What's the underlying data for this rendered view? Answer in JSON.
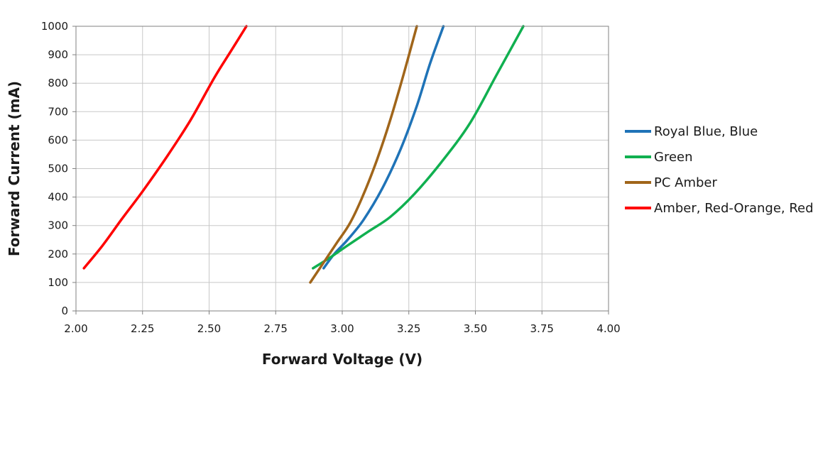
{
  "chart_data": {
    "type": "line",
    "title": "",
    "xlabel": "Forward Voltage (V)",
    "ylabel": "Forward Current (mA)",
    "xlim": [
      2.0,
      4.0
    ],
    "ylim": [
      0,
      1000
    ],
    "x_ticks": [
      "2.00",
      "2.25",
      "2.50",
      "2.75",
      "3.00",
      "3.25",
      "3.50",
      "3.75",
      "4.00"
    ],
    "y_ticks": [
      "0",
      "100",
      "200",
      "300",
      "400",
      "500",
      "600",
      "700",
      "800",
      "900",
      "1000"
    ],
    "grid": true,
    "legend_position": "right",
    "series": [
      {
        "name": "Royal Blue, Blue",
        "color": "#1f73b7",
        "x": [
          2.93,
          2.97,
          3.02,
          3.08,
          3.15,
          3.22,
          3.28,
          3.33,
          3.38
        ],
        "y": [
          150,
          200,
          250,
          320,
          430,
          570,
          720,
          870,
          1000
        ]
      },
      {
        "name": "Green",
        "color": "#10b050",
        "x": [
          2.89,
          2.95,
          3.02,
          3.1,
          3.18,
          3.27,
          3.37,
          3.48,
          3.58,
          3.68
        ],
        "y": [
          150,
          185,
          230,
          280,
          330,
          410,
          520,
          660,
          830,
          1000
        ]
      },
      {
        "name": "PC Amber",
        "color": "#a0651a",
        "x": [
          2.88,
          2.93,
          2.98,
          3.03,
          3.08,
          3.13,
          3.18,
          3.23,
          3.28
        ],
        "y": [
          100,
          170,
          240,
          310,
          410,
          530,
          670,
          830,
          1000
        ]
      },
      {
        "name": "Amber, Red-Orange, Red",
        "color": "#ff0000",
        "x": [
          2.03,
          2.1,
          2.17,
          2.25,
          2.34,
          2.43,
          2.52,
          2.58,
          2.64
        ],
        "y": [
          150,
          230,
          320,
          420,
          540,
          670,
          820,
          910,
          1000
        ]
      }
    ]
  }
}
